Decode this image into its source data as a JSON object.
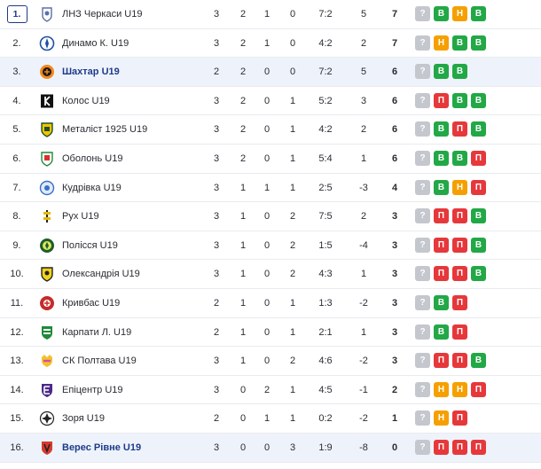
{
  "colors": {
    "win": "#22a846",
    "draw": "#f5a000",
    "loss": "#e6383b",
    "unknown": "#c4c7cd",
    "highlight": "#eef3fb",
    "accent": "#1e3a8a"
  },
  "rows": [
    {
      "pos": "1.",
      "team": "ЛНЗ Черкаси U19",
      "p": "3",
      "w": "2",
      "d": "1",
      "l": "0",
      "goals": "7:2",
      "gd": "5",
      "pts": "7",
      "form": [
        "?",
        "В",
        "Н",
        "В"
      ],
      "icon": "lnz-crest-icon"
    },
    {
      "pos": "2.",
      "team": "Динамо К. U19",
      "p": "3",
      "w": "2",
      "d": "1",
      "l": "0",
      "goals": "4:2",
      "gd": "2",
      "pts": "7",
      "form": [
        "?",
        "Н",
        "В",
        "В"
      ],
      "icon": "dynamo-crest-icon"
    },
    {
      "pos": "3.",
      "team": "Шахтар U19",
      "p": "2",
      "w": "2",
      "d": "0",
      "l": "0",
      "goals": "7:2",
      "gd": "5",
      "pts": "6",
      "form": [
        "?",
        "В",
        "В"
      ],
      "icon": "shakhtar-crest-icon"
    },
    {
      "pos": "4.",
      "team": "Колос U19",
      "p": "3",
      "w": "2",
      "d": "0",
      "l": "1",
      "goals": "5:2",
      "gd": "3",
      "pts": "6",
      "form": [
        "?",
        "П",
        "В",
        "В"
      ],
      "icon": "kolos-crest-icon"
    },
    {
      "pos": "5.",
      "team": "Металіст 1925 U19",
      "p": "3",
      "w": "2",
      "d": "0",
      "l": "1",
      "goals": "4:2",
      "gd": "2",
      "pts": "6",
      "form": [
        "?",
        "В",
        "П",
        "В"
      ],
      "icon": "metalist-crest-icon"
    },
    {
      "pos": "6.",
      "team": "Оболонь U19",
      "p": "3",
      "w": "2",
      "d": "0",
      "l": "1",
      "goals": "5:4",
      "gd": "1",
      "pts": "6",
      "form": [
        "?",
        "В",
        "В",
        "П"
      ],
      "icon": "obolon-crest-icon"
    },
    {
      "pos": "7.",
      "team": "Кудрівка U19",
      "p": "3",
      "w": "1",
      "d": "1",
      "l": "1",
      "goals": "2:5",
      "gd": "-3",
      "pts": "4",
      "form": [
        "?",
        "В",
        "Н",
        "П"
      ],
      "icon": "kudrivka-crest-icon"
    },
    {
      "pos": "8.",
      "team": "Рух U19",
      "p": "3",
      "w": "1",
      "d": "0",
      "l": "2",
      "goals": "7:5",
      "gd": "2",
      "pts": "3",
      "form": [
        "?",
        "П",
        "П",
        "В"
      ],
      "icon": "rukh-crest-icon"
    },
    {
      "pos": "9.",
      "team": "Полісся U19",
      "p": "3",
      "w": "1",
      "d": "0",
      "l": "2",
      "goals": "1:5",
      "gd": "-4",
      "pts": "3",
      "form": [
        "?",
        "П",
        "П",
        "В"
      ],
      "icon": "polissya-crest-icon"
    },
    {
      "pos": "10.",
      "team": "Олександрія U19",
      "p": "3",
      "w": "1",
      "d": "0",
      "l": "2",
      "goals": "4:3",
      "gd": "1",
      "pts": "3",
      "form": [
        "?",
        "П",
        "П",
        "В"
      ],
      "icon": "oleksandriya-crest-icon"
    },
    {
      "pos": "11.",
      "team": "Кривбас U19",
      "p": "2",
      "w": "1",
      "d": "0",
      "l": "1",
      "goals": "1:3",
      "gd": "-2",
      "pts": "3",
      "form": [
        "?",
        "В",
        "П"
      ],
      "icon": "kryvbas-crest-icon"
    },
    {
      "pos": "12.",
      "team": "Карпати Л. U19",
      "p": "2",
      "w": "1",
      "d": "0",
      "l": "1",
      "goals": "2:1",
      "gd": "1",
      "pts": "3",
      "form": [
        "?",
        "В",
        "П"
      ],
      "icon": "karpaty-crest-icon"
    },
    {
      "pos": "13.",
      "team": "СК Полтава U19",
      "p": "3",
      "w": "1",
      "d": "0",
      "l": "2",
      "goals": "4:6",
      "gd": "-2",
      "pts": "3",
      "form": [
        "?",
        "П",
        "П",
        "В"
      ],
      "icon": "poltava-crest-icon"
    },
    {
      "pos": "14.",
      "team": "Епіцентр U19",
      "p": "3",
      "w": "0",
      "d": "2",
      "l": "1",
      "goals": "4:5",
      "gd": "-1",
      "pts": "2",
      "form": [
        "?",
        "Н",
        "Н",
        "П"
      ],
      "icon": "epitsentr-crest-icon"
    },
    {
      "pos": "15.",
      "team": "Зоря U19",
      "p": "2",
      "w": "0",
      "d": "1",
      "l": "1",
      "goals": "0:2",
      "gd": "-2",
      "pts": "1",
      "form": [
        "?",
        "Н",
        "П"
      ],
      "icon": "zorya-crest-icon"
    },
    {
      "pos": "16.",
      "team": "Верес Рівне U19",
      "p": "3",
      "w": "0",
      "d": "0",
      "l": "3",
      "goals": "1:9",
      "gd": "-8",
      "pts": "0",
      "form": [
        "?",
        "П",
        "П",
        "П"
      ],
      "icon": "veres-crest-icon"
    }
  ]
}
